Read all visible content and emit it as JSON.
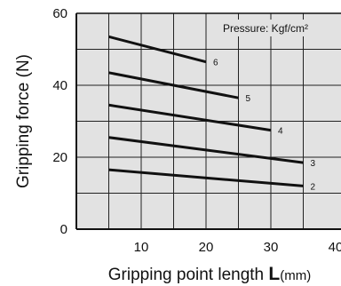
{
  "chart_data": {
    "type": "line",
    "xlabel": "Gripping point length ",
    "xlabel_symbol": "L",
    "xlabel_unit": "(mm)",
    "ylabel": "Gripping force (N)",
    "annotation": "Pressure: Kgf/cm²",
    "xlim": [
      0,
      40
    ],
    "ylim": [
      0,
      60
    ],
    "xticks": [
      10,
      20,
      30,
      40
    ],
    "yticks": [
      0,
      20,
      40,
      60
    ],
    "x_grid": [
      5,
      10,
      15,
      20,
      25,
      30,
      35
    ],
    "y_grid": [
      10,
      20,
      30,
      40,
      50
    ],
    "grid": true,
    "series": [
      {
        "name": "6",
        "x": [
          5,
          20
        ],
        "y": [
          53.5,
          46.5
        ]
      },
      {
        "name": "5",
        "x": [
          5,
          25
        ],
        "y": [
          43.5,
          36.5
        ]
      },
      {
        "name": "4",
        "x": [
          5,
          30
        ],
        "y": [
          34.5,
          27.5
        ]
      },
      {
        "name": "3",
        "x": [
          5,
          35
        ],
        "y": [
          25.5,
          18.5
        ]
      },
      {
        "name": "2",
        "x": [
          5,
          35
        ],
        "y": [
          16.5,
          12.0
        ]
      }
    ],
    "line_color": "#111111",
    "background_color": "#e2e2e2",
    "grid_color": "#222222"
  }
}
